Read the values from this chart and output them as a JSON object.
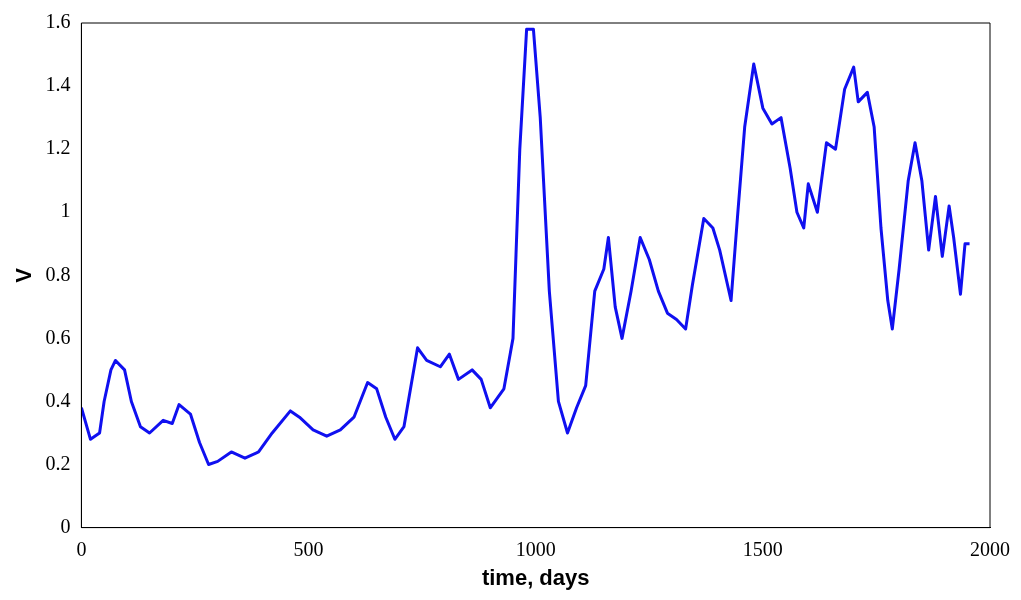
{
  "chart_data": {
    "type": "line",
    "xlabel": "time, days",
    "ylabel": "V",
    "xlim": [
      0,
      2000
    ],
    "xticks": [
      0,
      500,
      1000,
      1500,
      2000
    ],
    "ylim": [
      0,
      1.6
    ],
    "yticks": [
      0,
      0.2,
      0.4,
      0.6,
      0.8,
      1,
      1.2,
      1.4,
      1.6
    ],
    "grid": false,
    "legend": false,
    "marker": "none",
    "line_style": "solid",
    "series": [
      {
        "color": "#1010f0",
        "x": [
          0,
          20,
          40,
          50,
          65,
          75,
          95,
          110,
          130,
          150,
          180,
          200,
          215,
          240,
          260,
          280,
          300,
          330,
          360,
          390,
          420,
          460,
          480,
          510,
          540,
          570,
          600,
          630,
          650,
          670,
          690,
          710,
          740,
          760,
          790,
          810,
          830,
          860,
          880,
          900,
          930,
          950,
          965,
          980,
          995,
          1010,
          1030,
          1050,
          1070,
          1090,
          1110,
          1130,
          1150,
          1160,
          1175,
          1190,
          1210,
          1230,
          1250,
          1270,
          1290,
          1310,
          1330,
          1345,
          1370,
          1390,
          1405,
          1430,
          1445,
          1460,
          1480,
          1500,
          1520,
          1540,
          1560,
          1575,
          1590,
          1600,
          1620,
          1640,
          1660,
          1680,
          1700,
          1710,
          1730,
          1745,
          1760,
          1775,
          1785,
          1800,
          1820,
          1835,
          1850,
          1865,
          1880,
          1895,
          1910,
          1920,
          1935,
          1945,
          1955
        ],
        "values": [
          0.38,
          0.28,
          0.3,
          0.4,
          0.5,
          0.53,
          0.5,
          0.4,
          0.32,
          0.3,
          0.34,
          0.33,
          0.39,
          0.36,
          0.27,
          0.2,
          0.21,
          0.24,
          0.22,
          0.24,
          0.3,
          0.37,
          0.35,
          0.31,
          0.29,
          0.31,
          0.35,
          0.46,
          0.44,
          0.35,
          0.28,
          0.32,
          0.57,
          0.53,
          0.51,
          0.55,
          0.47,
          0.5,
          0.47,
          0.38,
          0.44,
          0.6,
          1.2,
          1.58,
          1.58,
          1.3,
          0.75,
          0.4,
          0.3,
          0.38,
          0.45,
          0.75,
          0.82,
          0.92,
          0.7,
          0.6,
          0.75,
          0.92,
          0.85,
          0.75,
          0.68,
          0.66,
          0.63,
          0.77,
          0.98,
          0.95,
          0.88,
          0.72,
          1.0,
          1.27,
          1.47,
          1.33,
          1.28,
          1.3,
          1.14,
          1.0,
          0.95,
          1.09,
          1.0,
          1.22,
          1.2,
          1.39,
          1.46,
          1.35,
          1.38,
          1.27,
          0.95,
          0.72,
          0.63,
          0.82,
          1.1,
          1.22,
          1.1,
          0.88,
          1.05,
          0.86,
          1.02,
          0.92,
          0.74,
          0.9,
          0.9
        ]
      }
    ]
  }
}
